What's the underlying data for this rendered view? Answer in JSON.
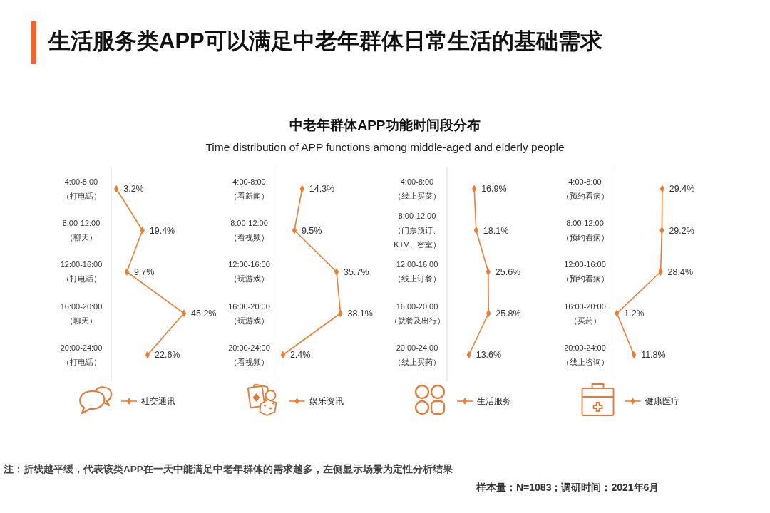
{
  "chart_data": [
    {
      "type": "other",
      "title": "中老年群体APP功能时间段分布",
      "subtitle": "Time distribution of APP functions among middle-aged and elderly people",
      "annotations": [
        "生活服务类APP可以满足中老年群体日常生活的基础需求",
        "注：折线越平缓，代表该类APP在一天中能满足中老年群体的需求越多，左侧显示场景为定性分析结果",
        "样本量：N=1083；调研时间：2021年6月"
      ]
    },
    {
      "type": "line",
      "orientation": "horizontal",
      "categories": [
        "4:00-8:00\n（打电话）",
        "8:00-12:00\n（聊天）",
        "12:00-16:00\n（打电话）",
        "16:00-20:00\n（聊天）",
        "20:00-24:00\n（打电话）"
      ],
      "series": [
        {
          "name": "社交通讯",
          "color": "#ed7d31",
          "values": [
            3.2,
            19.4,
            9.7,
            45.2,
            22.6
          ],
          "value_labels": [
            "3.2%",
            "19.4%",
            "9.7%",
            "45.2%",
            "22.6%"
          ]
        }
      ],
      "marker": "diamond",
      "legend": "bottom",
      "tick_labels": "y"
    },
    {
      "type": "line",
      "orientation": "horizontal",
      "categories": [
        "4:00-8:00\n（看新闻）",
        "8:00-12:00\n（看视频）",
        "12:00-16:00\n（玩游戏）",
        "16:00-20:00\n（玩游戏）",
        "20:00-24:00\n（看视频）"
      ],
      "series": [
        {
          "name": "娱乐资讯",
          "color": "#ed7d31",
          "values": [
            14.3,
            9.5,
            35.7,
            38.1,
            2.4
          ],
          "value_labels": [
            "14.3%",
            "9.5%",
            "35.7%",
            "38.1%",
            "2.4%"
          ]
        }
      ],
      "marker": "diamond",
      "legend": "bottom",
      "tick_labels": "y"
    },
    {
      "type": "line",
      "orientation": "horizontal",
      "categories": [
        "4:00-8:00\n（线上买菜）",
        "8:00-12:00\n（门票预订、\nKTV、密室）",
        "12:00-16:00\n（线上订餐）",
        "16:00-20:00\n（就餐及出行）",
        "20:00-24:00\n（线上买药）"
      ],
      "series": [
        {
          "name": "生活服务",
          "color": "#ed7d31",
          "values": [
            16.9,
            18.1,
            25.6,
            25.8,
            13.6
          ],
          "value_labels": [
            "16.9%",
            "18.1%",
            "25.6%",
            "25.8%",
            "13.6%"
          ]
        }
      ],
      "marker": "diamond",
      "legend": "bottom",
      "tick_labels": "y"
    },
    {
      "type": "line",
      "orientation": "horizontal",
      "categories": [
        "4:00-8:00\n（预约看病）",
        "8:00-12:00\n（预约看病）",
        "12:00-16:00\n（预约看病）",
        "16:00-20:00\n（买药）",
        "20:00-24:00\n（线上咨询）"
      ],
      "series": [
        {
          "name": "健康医疗",
          "color": "#ed7d31",
          "values": [
            29.4,
            29.2,
            28.4,
            1.2,
            11.8
          ],
          "value_labels": [
            "29.4%",
            "29.2%",
            "28.4%",
            "1.2%",
            "11.8%"
          ]
        }
      ],
      "marker": "diamond",
      "legend": "bottom",
      "tick_labels": "y"
    }
  ]
}
